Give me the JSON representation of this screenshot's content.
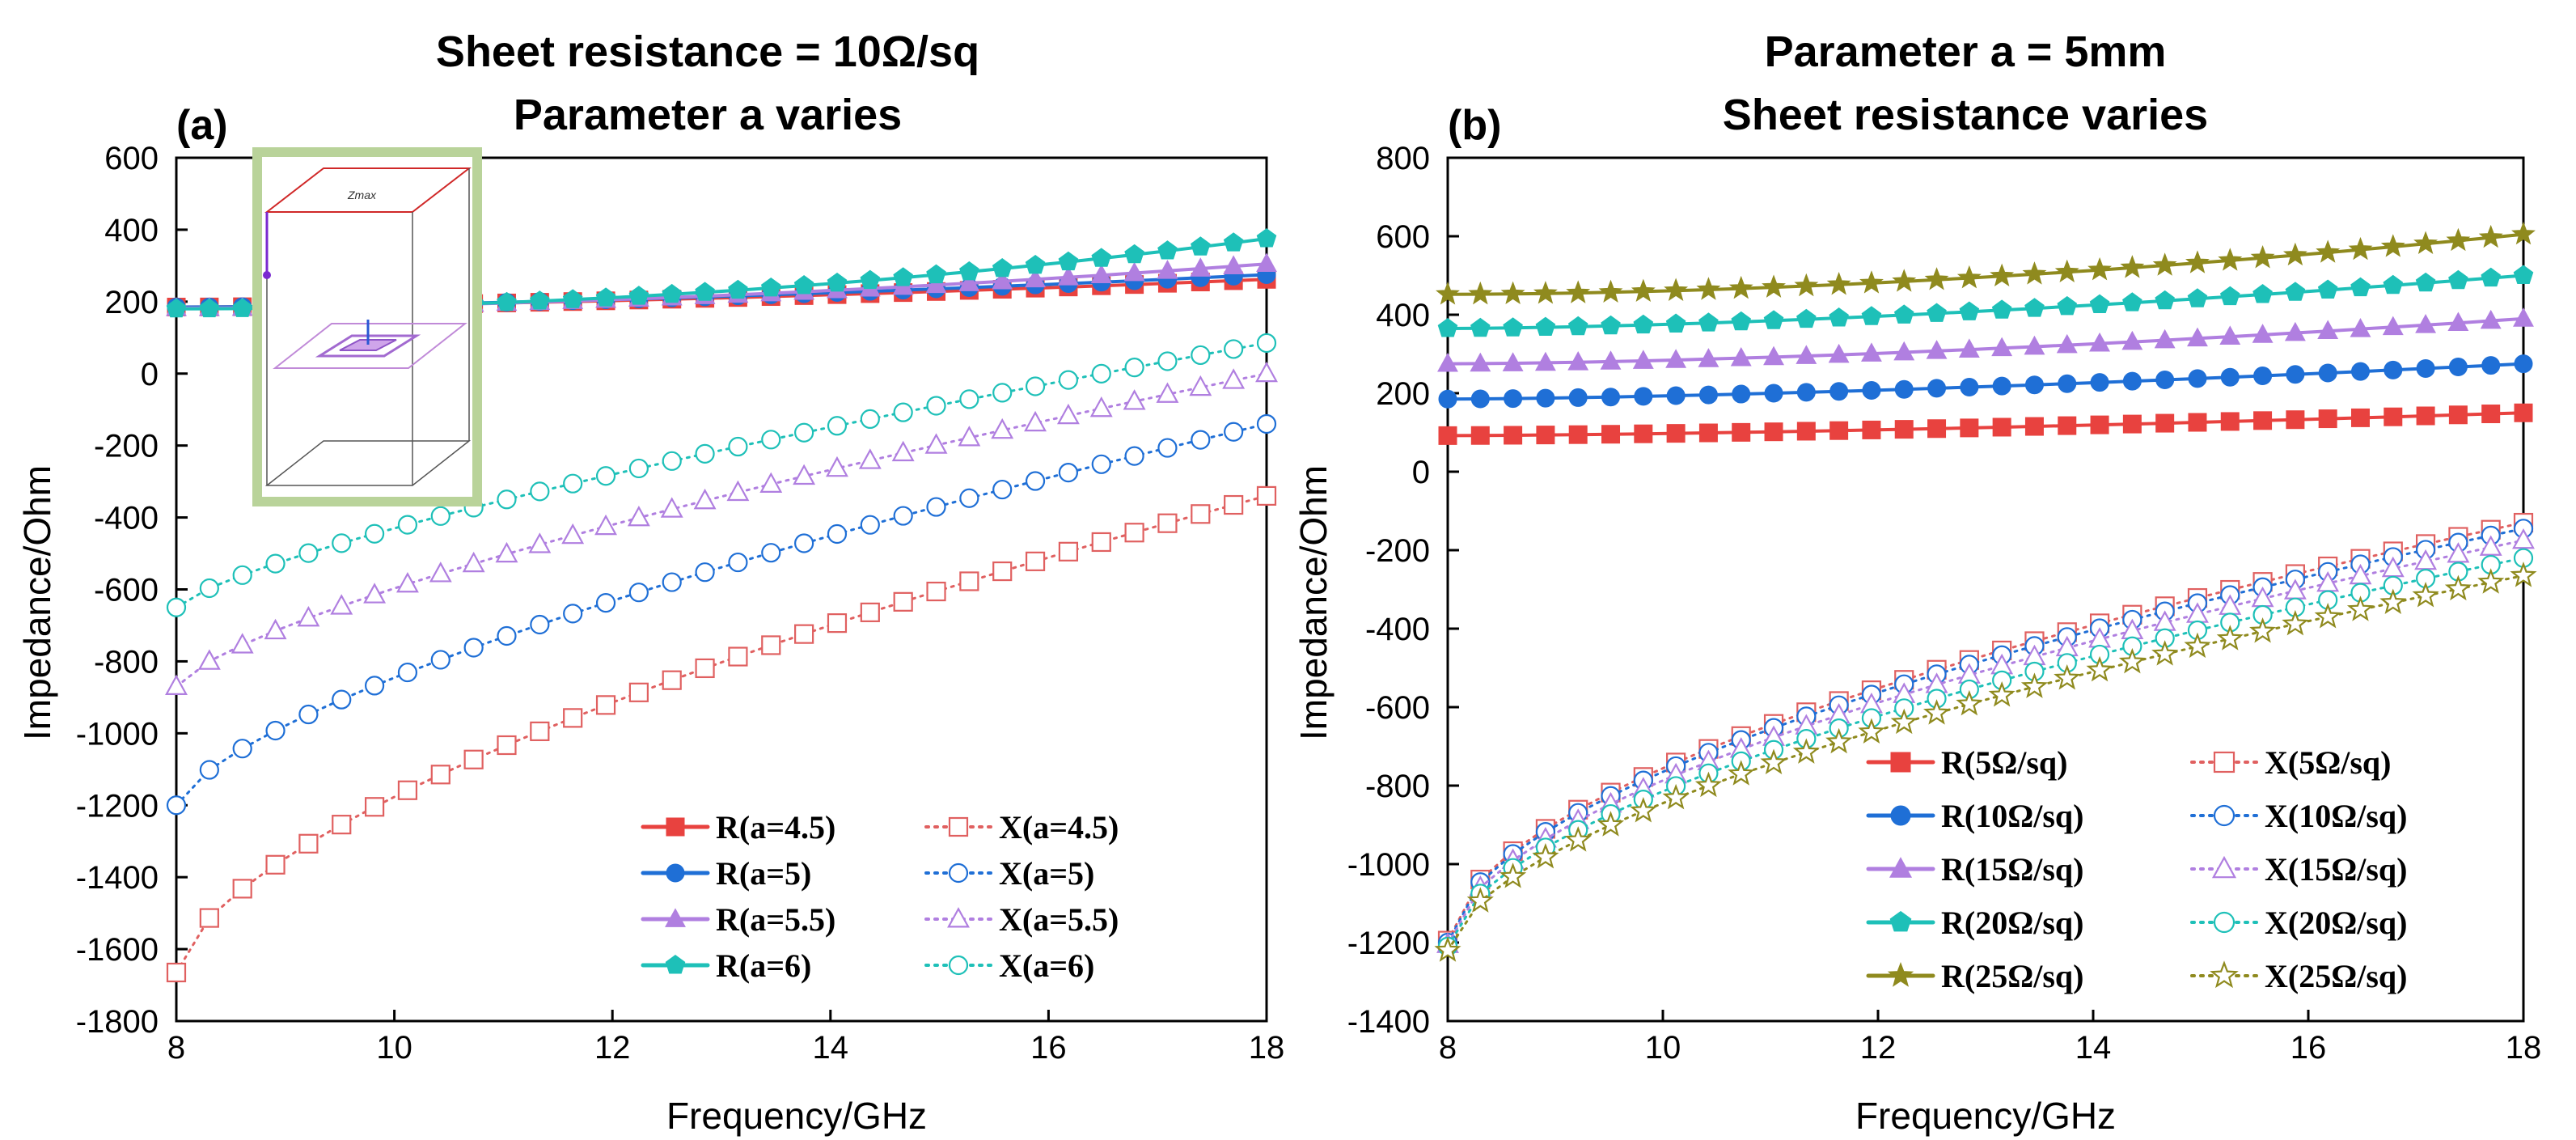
{
  "chart_data": [
    {
      "panel": "(a)",
      "type": "line",
      "title": [
        "Sheet resistance = 10Ω/sq",
        "Parameter a varies"
      ],
      "xlabel": "Frequency/GHz",
      "ylabel": "Impedance/Ohm",
      "xlim": [
        8,
        18
      ],
      "ylim": [
        -1800,
        600
      ],
      "xticks": [
        8,
        10,
        12,
        14,
        16,
        18
      ],
      "yticks": [
        -1800,
        -1600,
        -1400,
        -1200,
        -1000,
        -800,
        -600,
        -400,
        -200,
        0,
        200,
        400,
        600
      ],
      "grid": false,
      "legend_position": "bottom-right",
      "inset_label": "Zmax",
      "series": [
        {
          "name": "R(a=4.5)",
          "color": "#e8423f",
          "marker": "square",
          "filled": true,
          "line": "solid",
          "start": 185,
          "end": 262,
          "exp": 1.6
        },
        {
          "name": "R(a=5)",
          "color": "#1f6fd6",
          "marker": "circle",
          "filled": true,
          "line": "solid",
          "start": 185,
          "end": 275,
          "exp": 1.6
        },
        {
          "name": "R(a=5.5)",
          "color": "#b07fe0",
          "marker": "triangle",
          "filled": true,
          "line": "solid",
          "start": 182,
          "end": 305,
          "exp": 1.8
        },
        {
          "name": "R(a=6)",
          "color": "#1ec0b8",
          "marker": "pentagon",
          "filled": true,
          "line": "solid",
          "start": 180,
          "end": 375,
          "exp": 2.0
        },
        {
          "name": "X(a=4.5)",
          "color": "#e06060",
          "marker": "square",
          "filled": false,
          "line": "dotted",
          "start": -1665,
          "end": -340,
          "exp": 0.62
        },
        {
          "name": "X(a=5)",
          "color": "#1f6fd6",
          "marker": "circle",
          "filled": false,
          "line": "dotted",
          "start": -1200,
          "end": -140,
          "exp": 0.68
        },
        {
          "name": "X(a=5.5)",
          "color": "#b07fe0",
          "marker": "triangle",
          "filled": false,
          "line": "dotted",
          "start": -870,
          "end": 0,
          "exp": 0.72
        },
        {
          "name": "X(a=6)",
          "color": "#1ec0b8",
          "marker": "circle",
          "filled": false,
          "line": "dotted",
          "start": -650,
          "end": 85,
          "exp": 0.75
        }
      ]
    },
    {
      "panel": "(b)",
      "type": "line",
      "title": [
        "Parameter a = 5mm",
        "Sheet resistance varies"
      ],
      "xlabel": "Frequency/GHz",
      "ylabel": "Impedance/Ohm",
      "xlim": [
        8,
        18
      ],
      "ylim": [
        -1400,
        800
      ],
      "xticks": [
        8,
        10,
        12,
        14,
        16,
        18
      ],
      "yticks": [
        -1400,
        -1200,
        -1000,
        -800,
        -600,
        -400,
        -200,
        0,
        200,
        400,
        600,
        800
      ],
      "grid": false,
      "legend_position": "bottom-right",
      "series": [
        {
          "name": "R(5Ω/sq)",
          "color": "#e8423f",
          "marker": "square",
          "filled": true,
          "line": "solid",
          "start": 92,
          "end": 150,
          "exp": 1.5
        },
        {
          "name": "R(10Ω/sq)",
          "color": "#1f6fd6",
          "marker": "circle",
          "filled": true,
          "line": "solid",
          "start": 185,
          "end": 275,
          "exp": 1.5
        },
        {
          "name": "R(15Ω/sq)",
          "color": "#b07fe0",
          "marker": "triangle",
          "filled": true,
          "line": "solid",
          "start": 275,
          "end": 390,
          "exp": 1.6
        },
        {
          "name": "R(20Ω/sq)",
          "color": "#1ec0b8",
          "marker": "pentagon",
          "filled": true,
          "line": "solid",
          "start": 365,
          "end": 500,
          "exp": 1.6
        },
        {
          "name": "R(25Ω/sq)",
          "color": "#8f8a1e",
          "marker": "star",
          "filled": true,
          "line": "solid",
          "start": 452,
          "end": 605,
          "exp": 1.8
        },
        {
          "name": "X(5Ω/sq)",
          "color": "#e06060",
          "marker": "square",
          "filled": false,
          "line": "dotted",
          "start": -1195,
          "end": -130,
          "exp": 0.55
        },
        {
          "name": "X(10Ω/sq)",
          "color": "#1f6fd6",
          "marker": "circle",
          "filled": false,
          "line": "dotted",
          "start": -1200,
          "end": -145,
          "exp": 0.55
        },
        {
          "name": "X(15Ω/sq)",
          "color": "#b07fe0",
          "marker": "triangle",
          "filled": false,
          "line": "dotted",
          "start": -1205,
          "end": -175,
          "exp": 0.56
        },
        {
          "name": "X(20Ω/sq)",
          "color": "#1ec0b8",
          "marker": "circle",
          "filled": false,
          "line": "dotted",
          "start": -1210,
          "end": -220,
          "exp": 0.57
        },
        {
          "name": "X(25Ω/sq)",
          "color": "#8f8a1e",
          "marker": "star",
          "filled": false,
          "line": "dotted",
          "start": -1220,
          "end": -265,
          "exp": 0.58
        }
      ]
    }
  ]
}
